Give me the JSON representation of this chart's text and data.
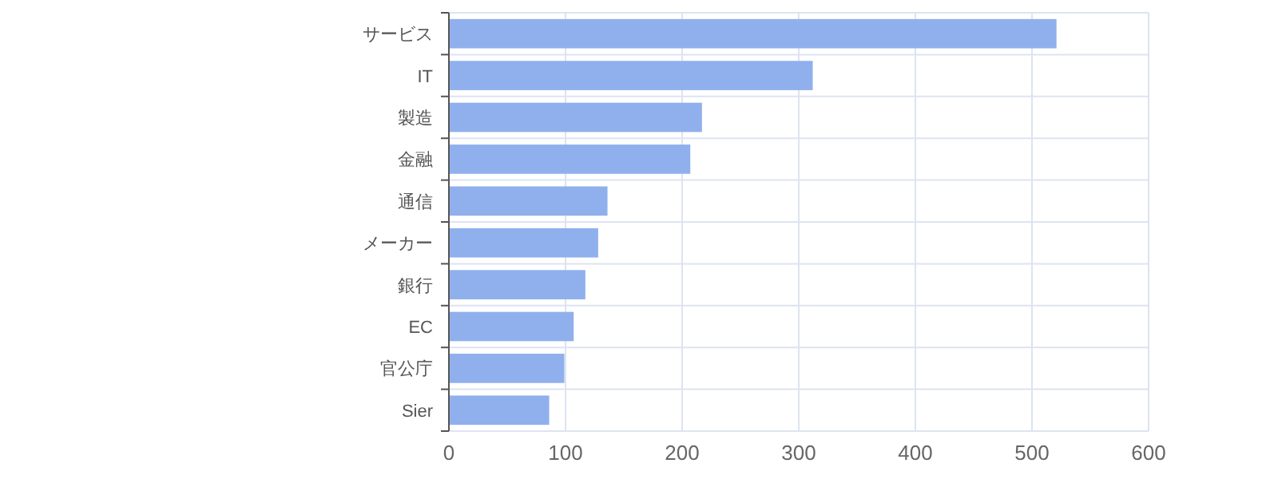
{
  "chart_data": {
    "type": "bar",
    "orientation": "horizontal",
    "categories": [
      "サービス",
      "IT",
      "製造",
      "金融",
      "通信",
      "メーカー",
      "銀行",
      "EC",
      "官公庁",
      "Sier"
    ],
    "values": [
      521,
      312,
      217,
      207,
      136,
      128,
      117,
      107,
      99,
      86
    ],
    "color": "#8eaeed",
    "xlim": [
      0,
      600
    ],
    "xticks": [
      0,
      100,
      200,
      300,
      400,
      500,
      600
    ],
    "grid": true
  }
}
